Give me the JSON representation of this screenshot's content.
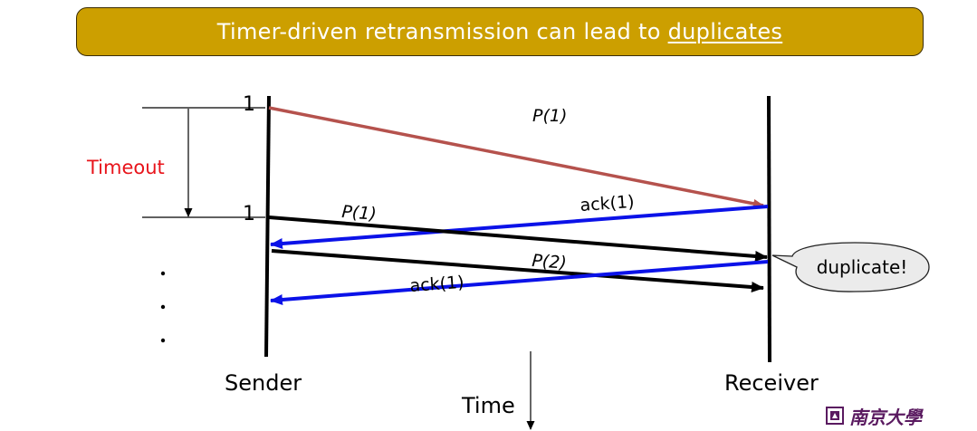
{
  "title": {
    "prefix": "Timer-driven retransmission can lead to ",
    "emphasis": "duplicates"
  },
  "labels": {
    "timeout": "Timeout",
    "seq_first": "1",
    "seq_second": "1",
    "msg_p1_first": "P(1)",
    "msg_p1_retx": "P(1)",
    "msg_ack1_first": "ack(1)",
    "msg_p2": "P(2)",
    "msg_ack1_second": "ack(1)",
    "sender": "Sender",
    "receiver": "Receiver",
    "time": "Time",
    "duplicate_callout": "duplicate!"
  },
  "logo": {
    "text": "南京大學"
  },
  "colors": {
    "title_bg": "#cc9f00",
    "first_packet": "#b5524d",
    "ack": "#0b12e8",
    "packet": "#000000",
    "timeout_label": "#e8141b"
  }
}
